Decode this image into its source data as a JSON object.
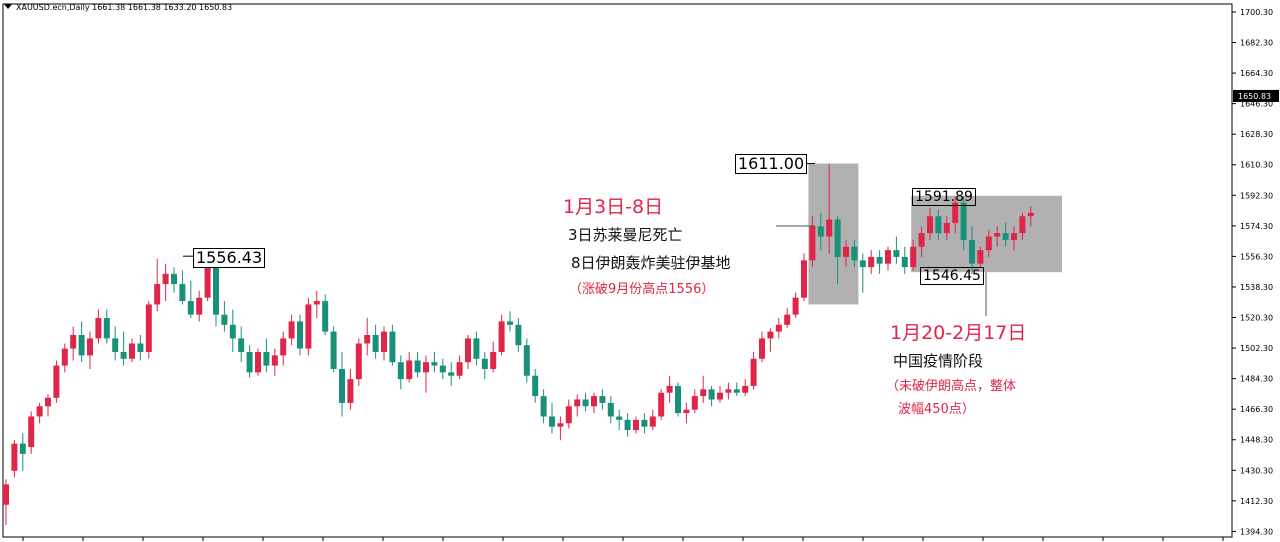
{
  "header": {
    "symbol_line": "XAUUSD.ecn,Daily  1661.38 1661.38 1633.20 1650.83"
  },
  "colors": {
    "up": "#e0254a",
    "down": "#19907a",
    "highlight": "#a9a9a9",
    "annotation": "#e0254a",
    "axis": "#000000"
  },
  "chart_data": {
    "type": "candlestick",
    "symbol": "XAUUSD.ecn",
    "timeframe": "Daily",
    "ohlc_header": {
      "open": 1661.38,
      "high": 1661.38,
      "low": 1633.2,
      "close": 1650.83
    },
    "ylim": [
      1391,
      1705
    ],
    "y_ticks": [
      "1700.30",
      "1682.30",
      "1664.30",
      "1646.30",
      "1628.30",
      "1610.30",
      "1592.30",
      "1574.30",
      "1556.30",
      "1538.30",
      "1520.30",
      "1502.30",
      "1484.30",
      "1466.30",
      "1448.30",
      "1430.30",
      "1412.30",
      "1394.30"
    ],
    "current_price": "1650.83",
    "candles": [
      {
        "o": 1410,
        "h": 1425,
        "l": 1398,
        "c": 1422
      },
      {
        "o": 1430,
        "h": 1448,
        "l": 1426,
        "c": 1446
      },
      {
        "o": 1446,
        "h": 1452,
        "l": 1430,
        "c": 1440
      },
      {
        "o": 1444,
        "h": 1465,
        "l": 1440,
        "c": 1462
      },
      {
        "o": 1462,
        "h": 1470,
        "l": 1458,
        "c": 1468
      },
      {
        "o": 1468,
        "h": 1475,
        "l": 1462,
        "c": 1473
      },
      {
        "o": 1473,
        "h": 1495,
        "l": 1470,
        "c": 1492
      },
      {
        "o": 1492,
        "h": 1505,
        "l": 1488,
        "c": 1502
      },
      {
        "o": 1502,
        "h": 1515,
        "l": 1495,
        "c": 1510
      },
      {
        "o": 1510,
        "h": 1518,
        "l": 1494,
        "c": 1498
      },
      {
        "o": 1498,
        "h": 1512,
        "l": 1490,
        "c": 1508
      },
      {
        "o": 1508,
        "h": 1525,
        "l": 1505,
        "c": 1520
      },
      {
        "o": 1520,
        "h": 1525,
        "l": 1505,
        "c": 1508
      },
      {
        "o": 1508,
        "h": 1515,
        "l": 1495,
        "c": 1500
      },
      {
        "o": 1500,
        "h": 1512,
        "l": 1492,
        "c": 1496
      },
      {
        "o": 1496,
        "h": 1508,
        "l": 1494,
        "c": 1505
      },
      {
        "o": 1505,
        "h": 1510,
        "l": 1495,
        "c": 1500
      },
      {
        "o": 1500,
        "h": 1530,
        "l": 1496,
        "c": 1528
      },
      {
        "o": 1528,
        "h": 1555,
        "l": 1524,
        "c": 1540
      },
      {
        "o": 1540,
        "h": 1552,
        "l": 1530,
        "c": 1546
      },
      {
        "o": 1546,
        "h": 1550,
        "l": 1535,
        "c": 1540
      },
      {
        "o": 1540,
        "h": 1548,
        "l": 1528,
        "c": 1530
      },
      {
        "o": 1530,
        "h": 1542,
        "l": 1520,
        "c": 1522
      },
      {
        "o": 1522,
        "h": 1536,
        "l": 1518,
        "c": 1532
      },
      {
        "o": 1532,
        "h": 1556,
        "l": 1530,
        "c": 1550
      },
      {
        "o": 1550,
        "h": 1556,
        "l": 1515,
        "c": 1522
      },
      {
        "o": 1522,
        "h": 1530,
        "l": 1512,
        "c": 1516
      },
      {
        "o": 1516,
        "h": 1525,
        "l": 1500,
        "c": 1508
      },
      {
        "o": 1508,
        "h": 1515,
        "l": 1494,
        "c": 1500
      },
      {
        "o": 1500,
        "h": 1504,
        "l": 1485,
        "c": 1488
      },
      {
        "o": 1488,
        "h": 1502,
        "l": 1486,
        "c": 1500
      },
      {
        "o": 1500,
        "h": 1508,
        "l": 1488,
        "c": 1492
      },
      {
        "o": 1492,
        "h": 1502,
        "l": 1486,
        "c": 1498
      },
      {
        "o": 1498,
        "h": 1512,
        "l": 1492,
        "c": 1508
      },
      {
        "o": 1508,
        "h": 1522,
        "l": 1504,
        "c": 1518
      },
      {
        "o": 1518,
        "h": 1522,
        "l": 1498,
        "c": 1502
      },
      {
        "o": 1502,
        "h": 1532,
        "l": 1498,
        "c": 1528
      },
      {
        "o": 1528,
        "h": 1536,
        "l": 1520,
        "c": 1530
      },
      {
        "o": 1530,
        "h": 1534,
        "l": 1510,
        "c": 1512
      },
      {
        "o": 1512,
        "h": 1515,
        "l": 1488,
        "c": 1490
      },
      {
        "o": 1490,
        "h": 1500,
        "l": 1462,
        "c": 1470
      },
      {
        "o": 1470,
        "h": 1490,
        "l": 1466,
        "c": 1484
      },
      {
        "o": 1484,
        "h": 1508,
        "l": 1480,
        "c": 1505
      },
      {
        "o": 1505,
        "h": 1520,
        "l": 1498,
        "c": 1510
      },
      {
        "o": 1510,
        "h": 1516,
        "l": 1496,
        "c": 1500
      },
      {
        "o": 1500,
        "h": 1515,
        "l": 1495,
        "c": 1512
      },
      {
        "o": 1512,
        "h": 1516,
        "l": 1492,
        "c": 1494
      },
      {
        "o": 1494,
        "h": 1498,
        "l": 1478,
        "c": 1484
      },
      {
        "o": 1484,
        "h": 1500,
        "l": 1482,
        "c": 1495
      },
      {
        "o": 1495,
        "h": 1500,
        "l": 1485,
        "c": 1488
      },
      {
        "o": 1488,
        "h": 1498,
        "l": 1476,
        "c": 1494
      },
      {
        "o": 1494,
        "h": 1500,
        "l": 1488,
        "c": 1492
      },
      {
        "o": 1492,
        "h": 1496,
        "l": 1484,
        "c": 1488
      },
      {
        "o": 1488,
        "h": 1494,
        "l": 1480,
        "c": 1486
      },
      {
        "o": 1486,
        "h": 1498,
        "l": 1484,
        "c": 1494
      },
      {
        "o": 1494,
        "h": 1510,
        "l": 1490,
        "c": 1508
      },
      {
        "o": 1508,
        "h": 1512,
        "l": 1492,
        "c": 1496
      },
      {
        "o": 1496,
        "h": 1500,
        "l": 1484,
        "c": 1490
      },
      {
        "o": 1490,
        "h": 1506,
        "l": 1488,
        "c": 1500
      },
      {
        "o": 1500,
        "h": 1522,
        "l": 1498,
        "c": 1518
      },
      {
        "o": 1518,
        "h": 1524,
        "l": 1512,
        "c": 1516
      },
      {
        "o": 1516,
        "h": 1520,
        "l": 1500,
        "c": 1504
      },
      {
        "o": 1504,
        "h": 1508,
        "l": 1482,
        "c": 1486
      },
      {
        "o": 1486,
        "h": 1490,
        "l": 1470,
        "c": 1474
      },
      {
        "o": 1474,
        "h": 1478,
        "l": 1458,
        "c": 1462
      },
      {
        "o": 1462,
        "h": 1470,
        "l": 1452,
        "c": 1456
      },
      {
        "o": 1456,
        "h": 1462,
        "l": 1448,
        "c": 1458
      },
      {
        "o": 1458,
        "h": 1472,
        "l": 1455,
        "c": 1468
      },
      {
        "o": 1468,
        "h": 1475,
        "l": 1462,
        "c": 1472
      },
      {
        "o": 1472,
        "h": 1476,
        "l": 1465,
        "c": 1468
      },
      {
        "o": 1468,
        "h": 1476,
        "l": 1464,
        "c": 1474
      },
      {
        "o": 1474,
        "h": 1478,
        "l": 1466,
        "c": 1470
      },
      {
        "o": 1470,
        "h": 1474,
        "l": 1458,
        "c": 1462
      },
      {
        "o": 1462,
        "h": 1466,
        "l": 1454,
        "c": 1460
      },
      {
        "o": 1460,
        "h": 1464,
        "l": 1450,
        "c": 1454
      },
      {
        "o": 1454,
        "h": 1462,
        "l": 1452,
        "c": 1460
      },
      {
        "o": 1460,
        "h": 1464,
        "l": 1452,
        "c": 1456
      },
      {
        "o": 1456,
        "h": 1466,
        "l": 1454,
        "c": 1462
      },
      {
        "o": 1462,
        "h": 1478,
        "l": 1460,
        "c": 1476
      },
      {
        "o": 1476,
        "h": 1486,
        "l": 1470,
        "c": 1480
      },
      {
        "o": 1480,
        "h": 1482,
        "l": 1462,
        "c": 1464
      },
      {
        "o": 1464,
        "h": 1470,
        "l": 1458,
        "c": 1466
      },
      {
        "o": 1466,
        "h": 1478,
        "l": 1464,
        "c": 1474
      },
      {
        "o": 1474,
        "h": 1486,
        "l": 1470,
        "c": 1478
      },
      {
        "o": 1478,
        "h": 1480,
        "l": 1468,
        "c": 1472
      },
      {
        "o": 1472,
        "h": 1480,
        "l": 1470,
        "c": 1476
      },
      {
        "o": 1476,
        "h": 1482,
        "l": 1472,
        "c": 1478
      },
      {
        "o": 1478,
        "h": 1482,
        "l": 1474,
        "c": 1476
      },
      {
        "o": 1476,
        "h": 1484,
        "l": 1474,
        "c": 1480
      },
      {
        "o": 1480,
        "h": 1500,
        "l": 1478,
        "c": 1496
      },
      {
        "o": 1496,
        "h": 1512,
        "l": 1494,
        "c": 1508
      },
      {
        "o": 1508,
        "h": 1514,
        "l": 1500,
        "c": 1512
      },
      {
        "o": 1512,
        "h": 1520,
        "l": 1508,
        "c": 1516
      },
      {
        "o": 1516,
        "h": 1526,
        "l": 1514,
        "c": 1522
      },
      {
        "o": 1522,
        "h": 1535,
        "l": 1520,
        "c": 1532
      },
      {
        "o": 1532,
        "h": 1558,
        "l": 1530,
        "c": 1554
      },
      {
        "o": 1554,
        "h": 1580,
        "l": 1550,
        "c": 1574
      },
      {
        "o": 1574,
        "h": 1582,
        "l": 1560,
        "c": 1568
      },
      {
        "o": 1568,
        "h": 1611,
        "l": 1558,
        "c": 1578
      },
      {
        "o": 1578,
        "h": 1580,
        "l": 1540,
        "c": 1556
      },
      {
        "o": 1556,
        "h": 1566,
        "l": 1550,
        "c": 1562
      },
      {
        "o": 1562,
        "h": 1566,
        "l": 1550,
        "c": 1554
      },
      {
        "o": 1554,
        "h": 1558,
        "l": 1535,
        "c": 1550
      },
      {
        "o": 1550,
        "h": 1560,
        "l": 1546,
        "c": 1556
      },
      {
        "o": 1556,
        "h": 1560,
        "l": 1546,
        "c": 1552
      },
      {
        "o": 1552,
        "h": 1562,
        "l": 1548,
        "c": 1560
      },
      {
        "o": 1560,
        "h": 1568,
        "l": 1552,
        "c": 1556
      },
      {
        "o": 1556,
        "h": 1562,
        "l": 1546,
        "c": 1550
      },
      {
        "o": 1550,
        "h": 1566,
        "l": 1548,
        "c": 1562
      },
      {
        "o": 1562,
        "h": 1574,
        "l": 1556,
        "c": 1570
      },
      {
        "o": 1570,
        "h": 1585,
        "l": 1566,
        "c": 1580
      },
      {
        "o": 1580,
        "h": 1584,
        "l": 1566,
        "c": 1570
      },
      {
        "o": 1570,
        "h": 1580,
        "l": 1566,
        "c": 1576
      },
      {
        "o": 1576,
        "h": 1592,
        "l": 1570,
        "c": 1588
      },
      {
        "o": 1588,
        "h": 1592,
        "l": 1560,
        "c": 1566
      },
      {
        "o": 1566,
        "h": 1574,
        "l": 1546,
        "c": 1552
      },
      {
        "o": 1552,
        "h": 1562,
        "l": 1550,
        "c": 1560
      },
      {
        "o": 1560,
        "h": 1572,
        "l": 1556,
        "c": 1568
      },
      {
        "o": 1568,
        "h": 1574,
        "l": 1562,
        "c": 1570
      },
      {
        "o": 1570,
        "h": 1576,
        "l": 1562,
        "c": 1566
      },
      {
        "o": 1566,
        "h": 1574,
        "l": 1560,
        "c": 1570
      },
      {
        "o": 1570,
        "h": 1582,
        "l": 1566,
        "c": 1580
      },
      {
        "o": 1580,
        "h": 1586,
        "l": 1574,
        "c": 1582
      }
    ],
    "annotations": {
      "box1_high": "1611.00",
      "box2_high": "1591.89",
      "box2_low": "1546.45",
      "left_high": "1556.43",
      "block1_title": "1月3日-8日",
      "block1_line1": "3日苏莱曼尼死亡",
      "block1_line2": "8日伊朗轰炸美驻伊基地",
      "block1_note": "（涨破9月份高点1556）",
      "block2_title": "1月20-2月17日",
      "block2_line1": "中国疫情阶段",
      "block2_note1": "（未破伊朗高点，整体",
      "block2_note2": "波幅450点）"
    }
  }
}
